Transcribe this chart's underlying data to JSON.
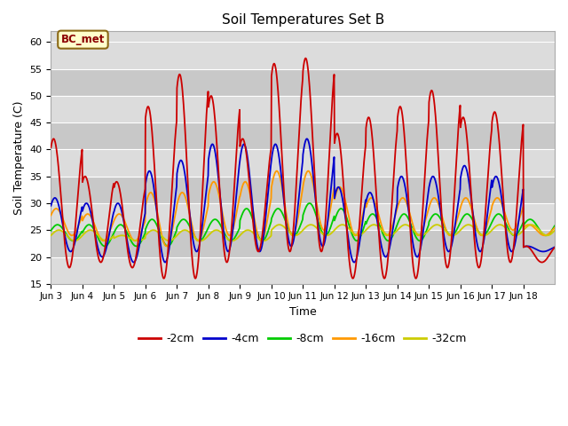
{
  "title": "Soil Temperatures Set B",
  "xlabel": "Time",
  "ylabel": "Soil Temperature (C)",
  "ylim": [
    15,
    62
  ],
  "yticks": [
    15,
    20,
    25,
    30,
    35,
    40,
    45,
    50,
    55,
    60
  ],
  "annotation_text": "BC_met",
  "line_colors": {
    "-2cm": "#cc0000",
    "-4cm": "#0000cc",
    "-8cm": "#00cc00",
    "-16cm": "#ff9900",
    "-32cm": "#cccc00"
  },
  "legend_labels": [
    "-2cm",
    "-4cm",
    "-8cm",
    "-16cm",
    "-32cm"
  ],
  "background_color": "#ffffff",
  "plot_bg_color": "#dcdcdc",
  "band_light": "#dcdcdc",
  "band_dark": "#c8c8c8",
  "grid_color": "#ffffff",
  "n_days": 16,
  "hours_per_day": 24,
  "start_day": 3,
  "day_labels": [
    "Jun 3",
    "Jun 4",
    "Jun 5",
    "Jun 6",
    "Jun 7",
    "Jun 8",
    "Jun 9",
    "Jun 10",
    "Jun 11",
    "Jun 12",
    "Jun 13",
    "Jun 14",
    "Jun 15",
    "Jun 16",
    "Jun 17",
    "Jun 18"
  ]
}
